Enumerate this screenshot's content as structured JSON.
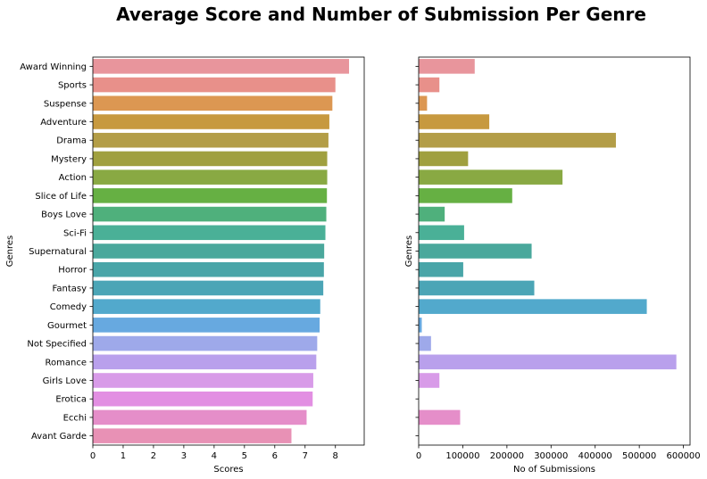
{
  "suptitle": "Average Score and Number of Submission Per Genre",
  "chart_data": [
    {
      "type": "bar",
      "orientation": "horizontal",
      "categories": [
        "Award Winning",
        "Sports",
        "Suspense",
        "Adventure",
        "Drama",
        "Mystery",
        "Action",
        "Slice of Life",
        "Boys Love",
        "Sci-Fi",
        "Supernatural",
        "Horror",
        "Fantasy",
        "Comedy",
        "Gourmet",
        "Not Specified",
        "Romance",
        "Girls Love",
        "Erotica",
        "Ecchi",
        "Avant Garde"
      ],
      "values": [
        8.45,
        8.0,
        7.9,
        7.8,
        7.77,
        7.73,
        7.73,
        7.72,
        7.7,
        7.67,
        7.63,
        7.62,
        7.6,
        7.5,
        7.48,
        7.4,
        7.37,
        7.27,
        7.25,
        7.05,
        6.55
      ],
      "xlabel": "Scores",
      "ylabel": "Genres",
      "xlim": [
        0,
        8.95
      ],
      "xticks": [
        "0",
        "1",
        "2",
        "3",
        "4",
        "5",
        "6",
        "7",
        "8"
      ],
      "colors": [
        "#e8959c",
        "#e8908a",
        "#dc9752",
        "#c7993f",
        "#b39d47",
        "#a0a03f",
        "#89a943",
        "#66b043",
        "#4fb07c",
        "#4ab097",
        "#4aa89c",
        "#49a5a8",
        "#4ba5b6",
        "#52a9cc",
        "#67a9e0",
        "#9ea9ea",
        "#b9a0ec",
        "#d89be8",
        "#e28fe2",
        "#e58ec9",
        "#e891b5"
      ]
    },
    {
      "type": "bar",
      "orientation": "horizontal",
      "categories": [
        "Award Winning",
        "Sports",
        "Suspense",
        "Adventure",
        "Drama",
        "Mystery",
        "Action",
        "Slice of Life",
        "Boys Love",
        "Sci-Fi",
        "Supernatural",
        "Horror",
        "Fantasy",
        "Comedy",
        "Gourmet",
        "Not Specified",
        "Romance",
        "Girls Love",
        "Erotica",
        "Ecchi",
        "Avant Garde"
      ],
      "values": [
        127000,
        47000,
        19000,
        160000,
        447000,
        112000,
        326000,
        212000,
        59000,
        103000,
        256000,
        101000,
        262000,
        517000,
        7000,
        28000,
        584000,
        47000,
        0,
        94000,
        0
      ],
      "xlabel": "No of Submissions",
      "ylabel": "Genres",
      "xlim": [
        0,
        615000
      ],
      "xticks": [
        "0",
        "100000",
        "200000",
        "300000",
        "400000",
        "500000",
        "600000"
      ]
    }
  ]
}
